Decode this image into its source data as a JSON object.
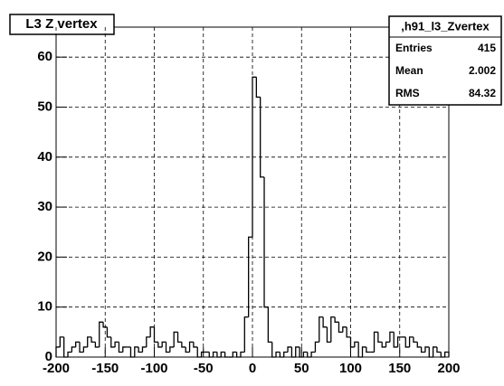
{
  "chart_data": {
    "type": "histogram",
    "title": "L3 Z vertex",
    "bins": [
      -200,
      -196,
      -192,
      -188,
      -184,
      -180,
      -176,
      -172,
      -168,
      -164,
      -160,
      -156,
      -152,
      -148,
      -144,
      -140,
      -136,
      -132,
      -128,
      -124,
      -120,
      -116,
      -112,
      -108,
      -104,
      -100,
      -96,
      -92,
      -88,
      -84,
      -80,
      -76,
      -72,
      -68,
      -64,
      -60,
      -56,
      -52,
      -48,
      -44,
      -40,
      -36,
      -32,
      -28,
      -24,
      -20,
      -16,
      -12,
      -8,
      -4,
      0,
      4,
      8,
      12,
      16,
      20,
      24,
      28,
      32,
      36,
      40,
      44,
      48,
      52,
      56,
      60,
      64,
      68,
      72,
      76,
      80,
      84,
      88,
      92,
      96,
      100,
      104,
      108,
      112,
      116,
      120,
      124,
      128,
      132,
      136,
      140,
      144,
      148,
      152,
      156,
      160,
      164,
      168,
      172,
      176,
      180,
      184,
      188,
      192,
      196,
      200
    ],
    "values": [
      2,
      4,
      0,
      1,
      2,
      3,
      1,
      2,
      4,
      3,
      2,
      7,
      6,
      4,
      2,
      3,
      1,
      2,
      2,
      0,
      2,
      1,
      2,
      4,
      6,
      3,
      2,
      3,
      1,
      2,
      5,
      3,
      2,
      1,
      3,
      2,
      0,
      1,
      1,
      0,
      1,
      0,
      1,
      0,
      0,
      1,
      0,
      1,
      8,
      24,
      56,
      52,
      36,
      10,
      3,
      0,
      1,
      0,
      1,
      2,
      0,
      2,
      0,
      1,
      0,
      1,
      3,
      8,
      6,
      3,
      8,
      7,
      5,
      6,
      4,
      2,
      3,
      0,
      2,
      1,
      1,
      5,
      3,
      2,
      3,
      5,
      2,
      4,
      4,
      2,
      4,
      3,
      2,
      1,
      2,
      0,
      2,
      1,
      0,
      1
    ],
    "color": "#000000",
    "xlim": [
      -200,
      200
    ],
    "ylim": [
      0,
      66
    ],
    "xticks": [
      -200,
      -150,
      -100,
      -50,
      0,
      50,
      100,
      150,
      200
    ],
    "yticks": [
      0,
      10,
      20,
      30,
      40,
      50,
      60
    ],
    "grid": true,
    "stats": {
      "name": ",h91_l3_Zvertex",
      "entries_label": "Entries",
      "entries": 415,
      "mean_label": "Mean",
      "mean": 2.002,
      "rms_label": "RMS",
      "rms": 84.32
    }
  }
}
